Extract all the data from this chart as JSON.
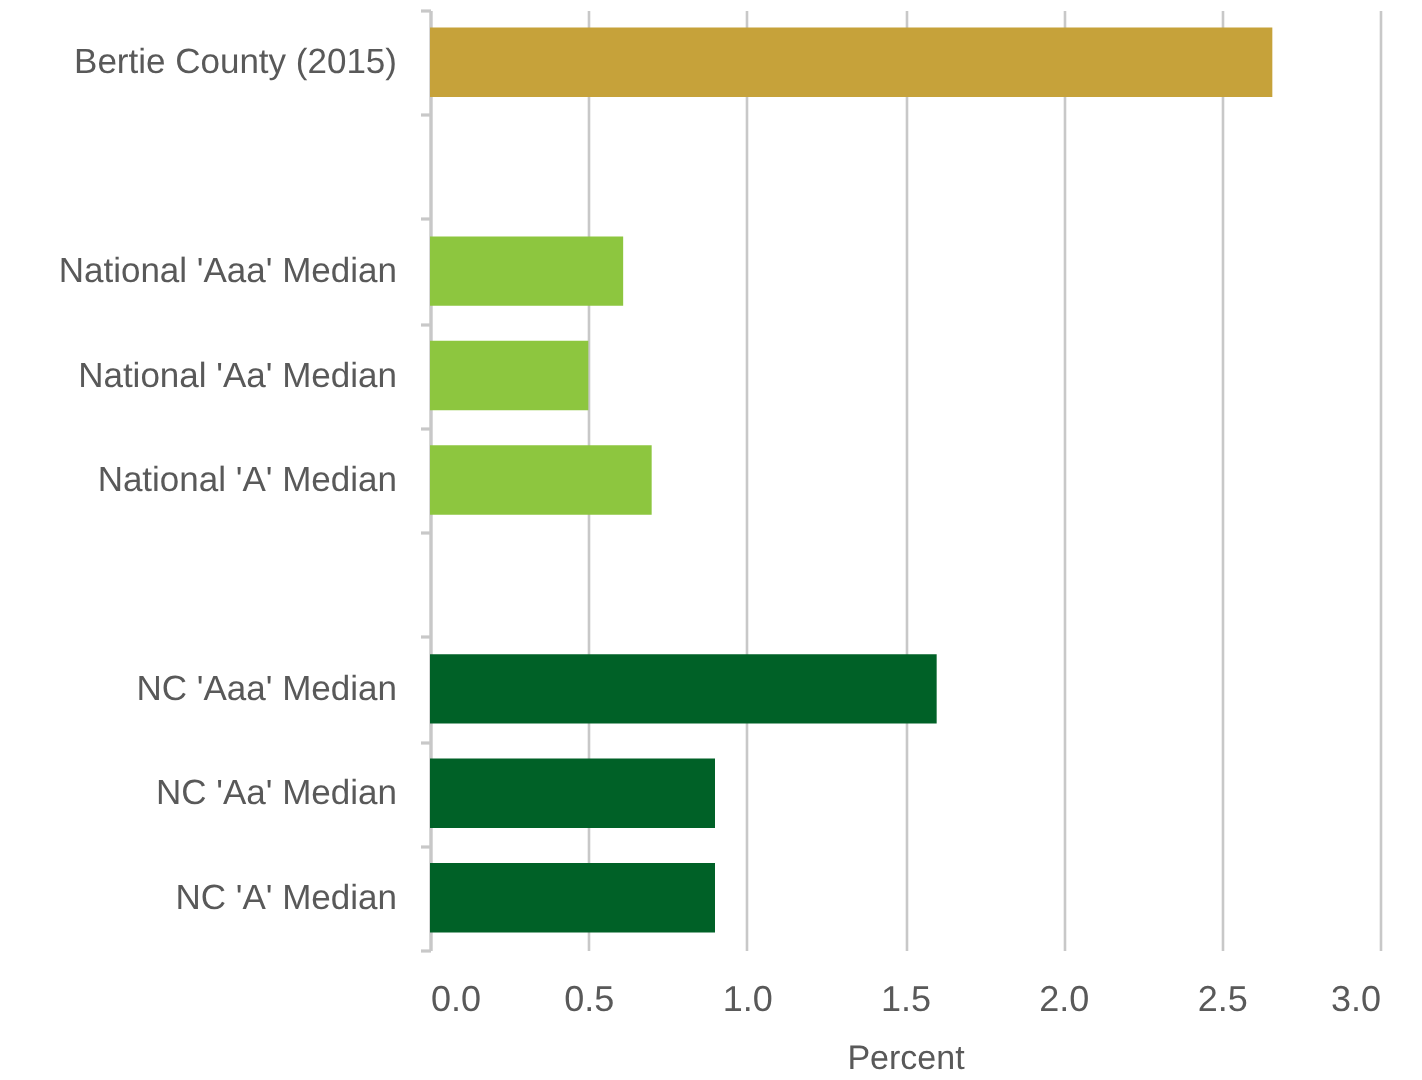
{
  "chart_data": {
    "type": "bar",
    "orientation": "horizontal",
    "categories": [
      "Bertie County (2015)",
      null,
      "National 'Aaa' Median",
      "National 'Aa' Median",
      "National 'A' Median",
      null,
      "NC 'Aaa' Median",
      "NC 'Aa' Median",
      "NC 'A' Median"
    ],
    "values": [
      2.66,
      null,
      0.61,
      0.5,
      0.7,
      null,
      1.6,
      0.9,
      0.9
    ],
    "colors": [
      "#c6a23a",
      null,
      "#8dc63f",
      "#8dc63f",
      "#8dc63f",
      null,
      "#006127",
      "#006127",
      "#006127"
    ],
    "xlabel": "Percent",
    "xlim": [
      0,
      3
    ],
    "xticks": [
      {
        "value": 0,
        "label": "0.0"
      },
      0.5,
      {
        "value": 1,
        "label": "1.0"
      },
      1.5,
      {
        "value": 2,
        "label": "2.0"
      },
      2.5,
      {
        "value": 3,
        "label": "3.0"
      }
    ],
    "grid": "x"
  }
}
